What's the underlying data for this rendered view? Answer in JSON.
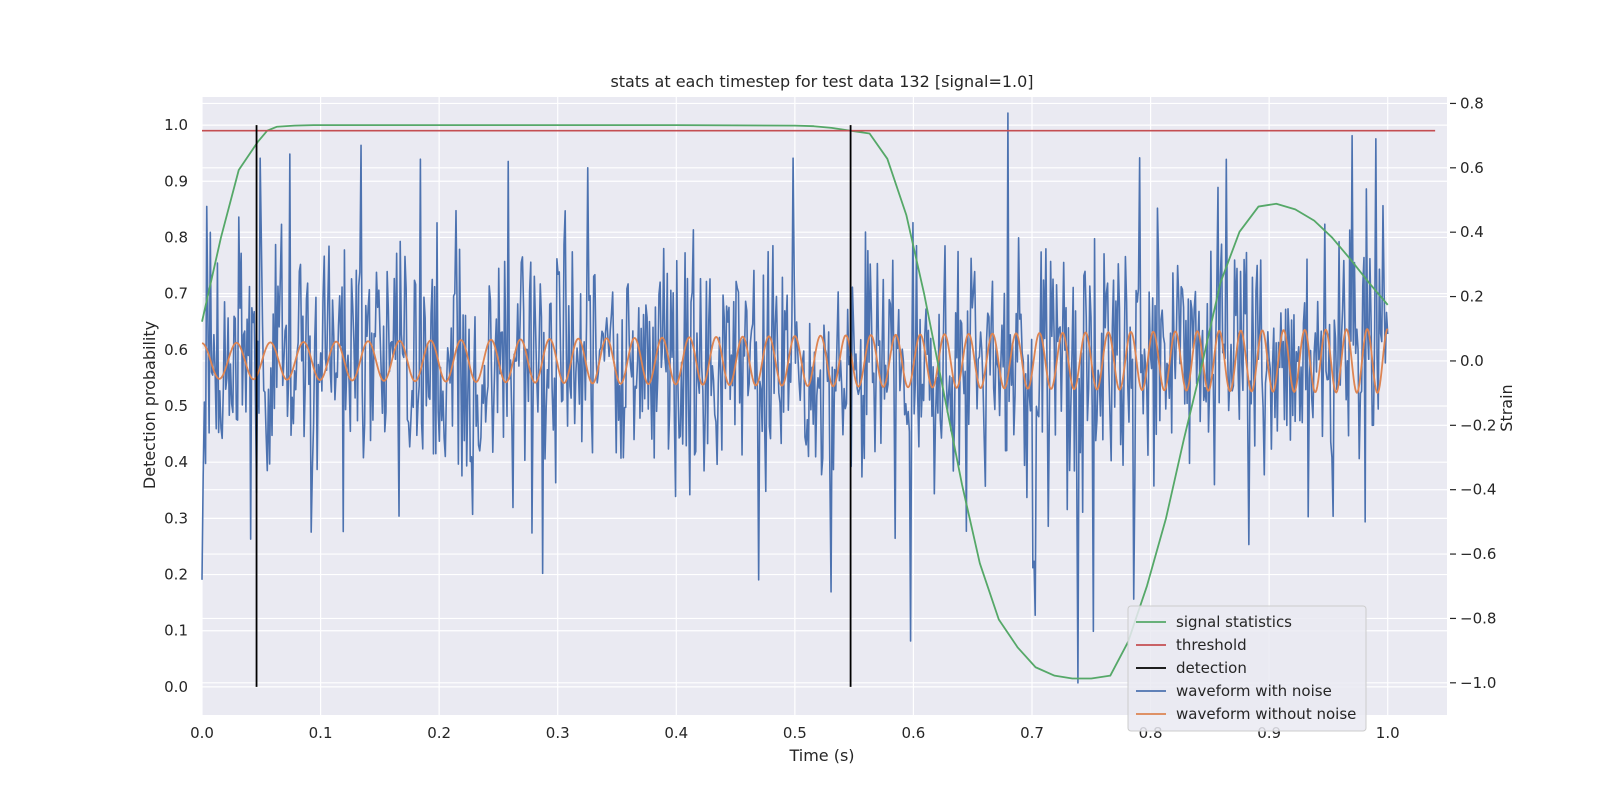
{
  "chart_data": {
    "type": "line",
    "title": "stats at each timestep for test data 132 [signal=1.0]",
    "xlabel": "Time (s)",
    "ylabel": "Detection probability",
    "y2label": "Strain",
    "xlim": [
      0.0,
      1.05
    ],
    "ylim": [
      -0.05,
      1.05
    ],
    "y2lim": [
      -1.1,
      0.82
    ],
    "xticks": [
      "0.0",
      "0.1",
      "0.2",
      "0.3",
      "0.4",
      "0.5",
      "0.6",
      "0.7",
      "0.8",
      "0.9",
      "1.0"
    ],
    "yticks": [
      "0.0",
      "0.1",
      "0.2",
      "0.3",
      "0.4",
      "0.5",
      "0.6",
      "0.7",
      "0.8",
      "0.9",
      "1.0"
    ],
    "y2ticks": [
      "−1.0",
      "−0.8",
      "−0.6",
      "−0.4",
      "−0.2",
      "0.0",
      "0.2",
      "0.4",
      "0.6",
      "0.8"
    ],
    "grid": true,
    "background": "#eaeaf2",
    "legend_position": "lower-right",
    "series": [
      {
        "name": "signal statistics",
        "color": "#55a868",
        "axis": "left",
        "x": [
          0.0,
          0.016,
          0.031,
          0.047,
          0.055,
          0.063,
          0.078,
          0.094,
          0.2,
          0.3,
          0.4,
          0.5,
          0.516,
          0.531,
          0.547,
          0.563,
          0.578,
          0.594,
          0.609,
          0.625,
          0.641,
          0.656,
          0.672,
          0.688,
          0.703,
          0.719,
          0.734,
          0.75,
          0.766,
          0.781,
          0.797,
          0.813,
          0.828,
          0.844,
          0.859,
          0.875,
          0.891,
          0.906,
          0.922,
          0.938,
          0.953,
          0.969,
          0.984,
          1.0
        ],
        "y": [
          0.65,
          0.8,
          0.92,
          0.97,
          0.99,
          0.997,
          0.999,
          1.0,
          1.0,
          1.0,
          1.0,
          0.999,
          0.998,
          0.995,
          0.99,
          0.985,
          0.94,
          0.84,
          0.7,
          0.53,
          0.36,
          0.22,
          0.12,
          0.07,
          0.035,
          0.02,
          0.015,
          0.015,
          0.02,
          0.08,
          0.18,
          0.3,
          0.44,
          0.58,
          0.72,
          0.81,
          0.855,
          0.86,
          0.85,
          0.83,
          0.8,
          0.76,
          0.72,
          0.68
        ]
      },
      {
        "name": "threshold",
        "color": "#c44e52",
        "axis": "left",
        "x": [
          0.0,
          1.04
        ],
        "y": [
          0.99,
          0.99
        ]
      },
      {
        "name": "detection",
        "color": "#000000",
        "axis": "left",
        "vlines": [
          0.046,
          0.547
        ],
        "y": [
          0.0,
          1.0
        ]
      },
      {
        "name": "waveform with noise",
        "color": "#4c72b0",
        "axis": "right",
        "kind": "noise",
        "x_range": [
          0.0,
          1.0
        ],
        "n_points": 1000,
        "mean": 0.0,
        "typical_amplitude": 0.21,
        "extreme_values": [
          [
            0.004,
            0.48
          ],
          [
            0.049,
            0.63
          ],
          [
            0.134,
            0.67
          ],
          [
            0.258,
            0.62
          ],
          [
            0.325,
            0.6
          ],
          [
            0.498,
            0.63
          ],
          [
            0.68,
            0.77
          ],
          [
            0.97,
            0.7
          ],
          [
            0.99,
            0.69
          ],
          [
            0.0,
            -0.68
          ],
          [
            0.119,
            -0.53
          ],
          [
            0.287,
            -0.66
          ],
          [
            0.469,
            -0.68
          ],
          [
            0.598,
            -0.87
          ],
          [
            0.703,
            -0.79
          ],
          [
            0.739,
            -1.0
          ],
          [
            0.752,
            -0.84
          ],
          [
            0.786,
            -0.74
          ],
          [
            0.981,
            -0.5
          ]
        ]
      },
      {
        "name": "waveform without noise",
        "color": "#dd8452",
        "axis": "right",
        "kind": "chirp",
        "x_range": [
          0.0,
          1.0
        ],
        "n_points": 1500,
        "amplitude_start": 0.055,
        "amplitude_end": 0.1,
        "frequency_start_hz": 34,
        "frequency_end_hz": 58
      }
    ],
    "legend": [
      "signal statistics",
      "threshold",
      "detection",
      "waveform with noise",
      "waveform without noise"
    ]
  }
}
